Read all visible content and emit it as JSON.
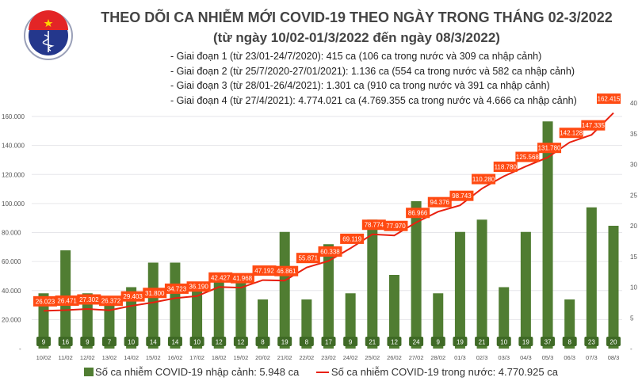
{
  "header": {
    "logo_text": "BỘ Y TẾ MINISTRY OF HEALTH",
    "title": "THEO DÕI CA NHIỄM MỚI COVID-19 THEO NGÀY TRONG THÁNG 02-3/2022",
    "subtitle": "(từ ngày 10/02-01/3/2022 đến ngày 08/3/2022)",
    "notes": [
      "- Giai đoạn 1 (từ 23/01-24/7/2020): 415 ca (106 ca trong nước và 309 ca nhập cảnh)",
      "- Giai đoạn 2 (từ 25/7/2020-27/01/2021): 1.136 ca (554 ca trong nước và 582 ca nhập cảnh)",
      "- Giai đoạn 3 (từ 28/01-26/4/2021): 1.301 ca (910 ca trong nước và 391 ca nhập cảnh)",
      "- Giai đoạn 4 (từ 27/4/2021): 4.774.021 ca (4.769.355 ca trong nước và 4.666 ca nhập cảnh)"
    ]
  },
  "chart_data": {
    "type": "bar+line",
    "categories": [
      "10/02",
      "11/02",
      "12/02",
      "13/02",
      "14/02",
      "15/02",
      "16/02",
      "17/02",
      "18/02",
      "19/02",
      "20/02",
      "21/02",
      "22/02",
      "23/02",
      "24/02",
      "25/02",
      "26/02",
      "27/02",
      "28/02",
      "01/3",
      "02/3",
      "03/3",
      "04/3",
      "05/3",
      "06/3",
      "07/3",
      "08/3"
    ],
    "series": [
      {
        "name": "Số ca nhiễm COVID-19 nhập cảnh: 5.948 ca",
        "type": "bar",
        "axis": "right",
        "color": "#507d32",
        "values": [
          9,
          16,
          9,
          7,
          10,
          14,
          14,
          10,
          12,
          12,
          8,
          19,
          8,
          17,
          9,
          21,
          12,
          24,
          9,
          19,
          21,
          10,
          19,
          37,
          8,
          23,
          20
        ]
      },
      {
        "name": "Số ca nhiễm COVID-19 trong nước: 4.770.925 ca",
        "type": "line",
        "axis": "left",
        "color": "#e8200f",
        "values": [
          26023,
          26471,
          27302,
          26372,
          29403,
          31800,
          34723,
          36190,
          42427,
          41968,
          47192,
          46861,
          55871,
          60338,
          69119,
          78774,
          77970,
          86966,
          94376,
          98743,
          110280,
          118780,
          125568,
          131780,
          142128,
          147335,
          162415
        ]
      }
    ],
    "left_axis": {
      "ylim": [
        0,
        160000
      ],
      "ticks": [
        "-",
        "20.000",
        "40.000",
        "60.000",
        "80.000",
        "100.000",
        "120.000",
        "140.000",
        "160.000"
      ]
    },
    "right_axis": {
      "ylim": [
        0,
        40
      ],
      "ticks": [
        "-",
        "5",
        "10",
        "15",
        "20",
        "25",
        "30",
        "35",
        "40"
      ]
    },
    "bar_labels": [
      "9",
      "16",
      "9",
      "7",
      "10",
      "14",
      "14",
      "10",
      "12",
      "12",
      "8",
      "19",
      "8",
      "17",
      "9",
      "21",
      "12",
      "24",
      "9",
      "19",
      "21",
      "10",
      "19",
      "37",
      "8",
      "23",
      "20"
    ],
    "line_labels": [
      "26.023",
      "26.471",
      "27.302",
      "26.372",
      "29.403",
      "31.800",
      "34.723",
      "36.190",
      "42.427",
      "41.968",
      "47.192",
      "46.861",
      "55.871",
      "60.338",
      "69.119",
      "78.774",
      "77.970",
      "86.966",
      "94.376",
      "98.743",
      "110.280",
      "118.780",
      "125.568",
      "131.780",
      "142.128",
      "147.335",
      "162.415"
    ],
    "grid": true,
    "legend_placement": "bottom",
    "label_color": "#ff4a12"
  }
}
